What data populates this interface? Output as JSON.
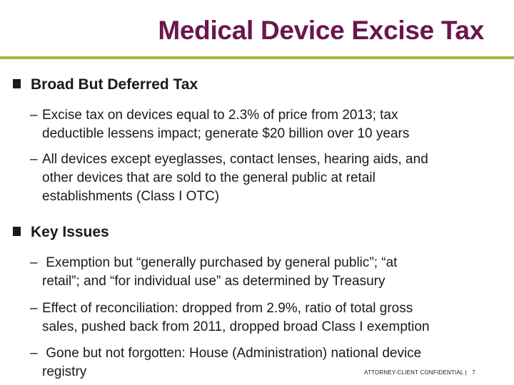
{
  "slide": {
    "title": "Medical Device Excise Tax",
    "accent_color": "#6b1550",
    "rule_color": "#9cbc3c"
  },
  "sections": [
    {
      "heading": "Broad But Deferred Tax",
      "items": [
        {
          "dash": "–",
          "lines": [
            "Excise tax on devices equal to 2.3% of price from 2013; tax",
            "deductible lessens impact; generate $20 billion over 10 years"
          ]
        },
        {
          "dash": "–",
          "lines": [
            "All devices except eyeglasses, contact lenses, hearing aids, and",
            "other devices that are sold to the general public at retail",
            "establishments (Class I OTC)"
          ]
        }
      ]
    },
    {
      "heading": "Key Issues",
      "items": [
        {
          "dash": "–",
          "lines": [
            " Exemption but “generally purchased by general public”; “at",
            "retail”; and “for individual use” as determined by Treasury"
          ]
        },
        {
          "dash": "–",
          "lines": [
            "Effect of reconciliation: dropped from 2.9%, ratio of total gross",
            "sales, pushed back from 2011, dropped broad Class I exemption"
          ]
        },
        {
          "dash": "–",
          "lines": [
            " Gone but not forgotten: House (Administration) national device",
            "registry"
          ]
        }
      ]
    }
  ],
  "footer": {
    "text": "ATTORNEY-CLIENT CONFIDENTIAL |   7"
  }
}
